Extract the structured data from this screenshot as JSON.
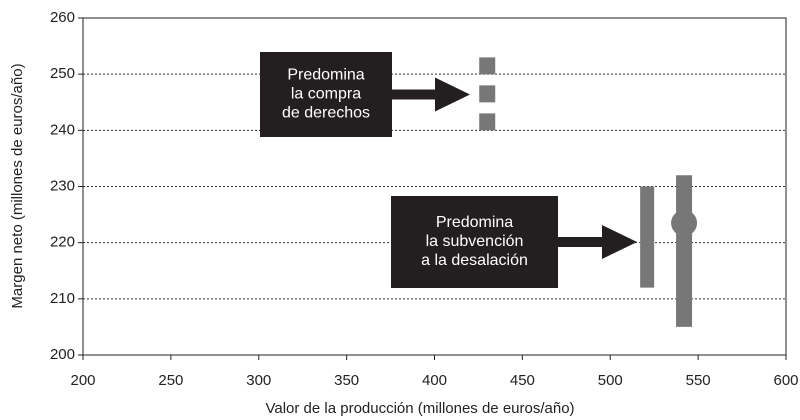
{
  "chart_data": {
    "type": "range",
    "xlabel": "Valor de la producción (millones de euros/año)",
    "ylabel": "Margen neto (millones de euros/año)",
    "xlim": [
      200,
      600
    ],
    "xticks": [
      200,
      250,
      300,
      350,
      400,
      450,
      500,
      550,
      600
    ],
    "ylim": [
      200,
      260
    ],
    "yticks": [
      200,
      210,
      220,
      230,
      240,
      250,
      260
    ],
    "grid": true,
    "series": [
      {
        "x": 430,
        "low": 240,
        "high": 253,
        "style": "dashed",
        "color": "#777777"
      },
      {
        "x": 521,
        "low": 212,
        "high": 230,
        "color": "#777777"
      },
      {
        "x": 542,
        "low": 205,
        "high": 232,
        "mid": 223.5,
        "color": "#777777"
      }
    ],
    "annotations": [
      {
        "lines": [
          "Predomina",
          "la compra",
          "de derechos"
        ]
      },
      {
        "lines": [
          "Predomina",
          "la subvención",
          "a la desalación"
        ]
      }
    ]
  }
}
